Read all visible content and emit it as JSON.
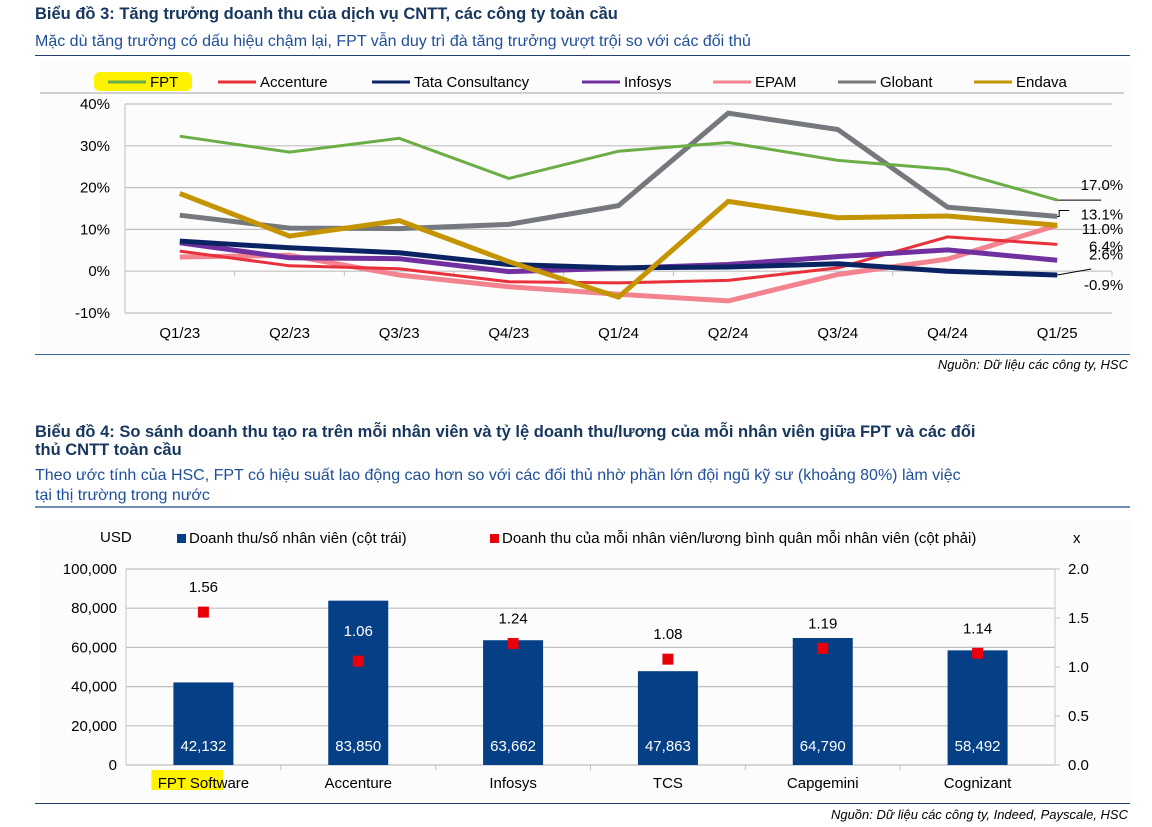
{
  "chart3": {
    "title": "Biểu đồ 3: Tăng trưởng doanh thu của dịch vụ CNTT, các công ty toàn cầu",
    "subtitle": "Mặc dù tăng trưởng có dấu hiệu chậm lại, FPT vẫn duy trì đà tăng trưởng vượt trội so với các đối thủ",
    "source": "Nguồn: Dữ liệu các công ty, HSC"
  },
  "chart4": {
    "title_line1": "Biểu đồ 4: So sánh doanh thu tạo ra trên mỗi nhân viên và tỷ lệ doanh thu/lương của mỗi nhân viên giữa FPT và các đối",
    "title_line2": "thủ CNTT toàn cầu",
    "subtitle_line1": "Theo ước tính của HSC, FPT có hiệu suất lao động cao hơn so với các đối thủ nhờ phần lớn đội ngũ kỹ sư (khoảng 80%) làm việc",
    "subtitle_line2": "tại thị trường trong nước",
    "source": "Nguồn: Dữ liệu các công ty, Indeed, Payscale, HSC"
  },
  "chart_data": [
    {
      "type": "line",
      "title": "Biểu đồ 3: Tăng trưởng doanh thu của dịch vụ CNTT, các công ty toàn cầu",
      "xlabel": "",
      "ylabel": "",
      "categories": [
        "Q1/23",
        "Q2/23",
        "Q3/23",
        "Q4/23",
        "Q1/24",
        "Q2/24",
        "Q3/24",
        "Q4/24",
        "Q1/25"
      ],
      "ylim": [
        -10,
        40
      ],
      "yticks": [
        "-10%",
        "0%",
        "10%",
        "20%",
        "30%",
        "40%"
      ],
      "ytick_values": [
        -10,
        0,
        10,
        20,
        30,
        40
      ],
      "grid": true,
      "legend_position": "top",
      "highlighted_legend": "FPT",
      "series": [
        {
          "name": "FPT",
          "color": "#6aae45",
          "values": [
            32.3,
            28.5,
            31.8,
            22.2,
            28.7,
            30.8,
            26.5,
            24.4,
            17.0
          ],
          "end_label": "17.0%"
        },
        {
          "name": "Accenture",
          "color": "#e8313a",
          "values": [
            4.8,
            1.3,
            0.6,
            -2.5,
            -2.8,
            -2.2,
            0.8,
            8.2,
            6.4
          ],
          "end_label": "6.4%"
        },
        {
          "name": "Tata Consultancy",
          "color": "#0a2463",
          "values": [
            7.2,
            5.6,
            4.4,
            1.6,
            0.8,
            1.0,
            1.8,
            0.0,
            -0.9
          ],
          "end_label": "-0.9%"
        },
        {
          "name": "Infosys",
          "color": "#7030a0",
          "values": [
            6.8,
            3.2,
            3.0,
            -0.1,
            0.7,
            1.6,
            3.5,
            5.1,
            2.6
          ],
          "end_label": "2.6%"
        },
        {
          "name": "EPAM",
          "color": "#f2838f",
          "values": [
            3.4,
            3.8,
            -0.9,
            -3.7,
            -5.5,
            -7.1,
            -0.8,
            2.9,
            11.0
          ],
          "end_label": ""
        },
        {
          "name": "Globant",
          "color": "#75787c",
          "values": [
            13.4,
            10.3,
            10.2,
            11.2,
            15.7,
            37.8,
            33.9,
            15.3,
            13.1
          ],
          "end_label": "13.1%"
        },
        {
          "name": "Endava",
          "color": "#c49500",
          "values": [
            18.6,
            8.4,
            12.1,
            2.3,
            -6.2,
            16.7,
            12.8,
            13.2,
            11.0
          ],
          "end_label": "11.0%"
        }
      ]
    },
    {
      "type": "bar",
      "title": "Biểu đồ 4: So sánh doanh thu tạo ra trên mỗi nhân viên và tỷ lệ doanh thu/lương của mỗi nhân viên giữa FPT và các đối thủ CNTT toàn cầu",
      "categories": [
        "FPT Software",
        "Accenture",
        "Infosys",
        "TCS",
        "Capgemini",
        "Cognizant"
      ],
      "highlighted_category": "FPT Software",
      "ylabel": "USD",
      "y2label": "x",
      "ylim": [
        0,
        100000
      ],
      "y2lim": [
        0.0,
        2.0
      ],
      "yticks": [
        "0",
        "20,000",
        "40,000",
        "60,000",
        "80,000",
        "100,000"
      ],
      "ytick_values": [
        0,
        20000,
        40000,
        60000,
        80000,
        100000
      ],
      "y2ticks": [
        "0.0",
        "0.5",
        "1.0",
        "1.5",
        "2.0"
      ],
      "y2tick_values": [
        0.0,
        0.5,
        1.0,
        1.5,
        2.0
      ],
      "grid": true,
      "legend_position": "top",
      "series": [
        {
          "name": "Doanh thu/số nhân viên (cột trái)",
          "kind": "bar",
          "axis": "left",
          "color": "#053f86",
          "values": [
            42132,
            83850,
            63662,
            47863,
            64790,
            58492
          ],
          "labels": [
            "42,132",
            "83,850",
            "63,662",
            "47,863",
            "64,790",
            "58,492"
          ]
        },
        {
          "name": "Doanh thu của mỗi nhân viên/lương bình quân mỗi nhân viên (cột phải)",
          "kind": "marker",
          "axis": "right",
          "color": "#e8000b",
          "values": [
            1.56,
            1.06,
            1.24,
            1.08,
            1.19,
            1.14
          ],
          "labels": [
            "1.56",
            "1.06",
            "1.24",
            "1.08",
            "1.19",
            "1.14"
          ]
        }
      ]
    }
  ]
}
